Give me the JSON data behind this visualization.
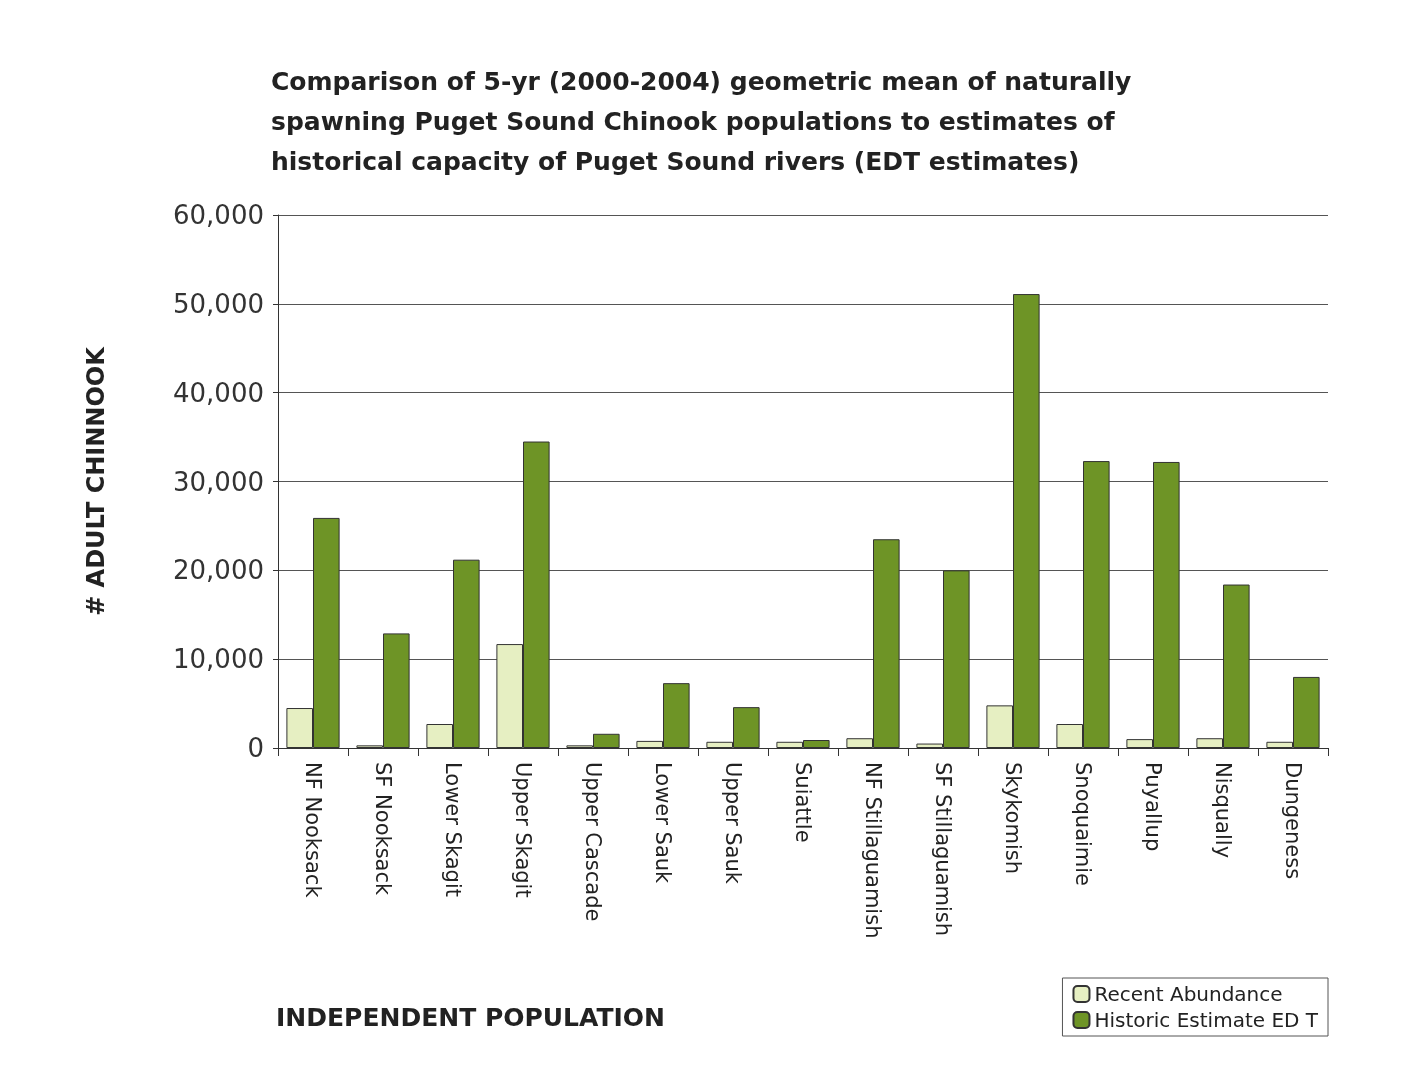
{
  "chart_data": {
    "type": "bar",
    "title": "Comparison of 5-yr (2000-2004) geometric mean of naturally\nspawning Puget Sound Chinook populations to estimates of\nhistorical capacity of Puget Sound rivers (EDT estimates)",
    "xlabel": "INDEPENDENT POPULATION",
    "ylabel": "# ADULT CHINNOOK",
    "categories": [
      "NF Nooksack",
      "SF Nooksack",
      "Lower Skagit",
      "Upper Skagit",
      "Upper Cascade",
      "Lower Sauk",
      "Upper Sauk",
      "Suiattle",
      "NF Stillaguamish",
      "SF Stillaguamish",
      "Skykomish",
      "Snoquaimie",
      "Puyallup",
      "Nisqually",
      "Dungeness"
    ],
    "series": [
      {
        "name": "Recent Abundance",
        "color": "#e6efc2",
        "values": [
          4500,
          300,
          2700,
          11700,
          300,
          800,
          700,
          700,
          1100,
          500,
          4800,
          2700,
          1000,
          1100,
          700
        ]
      },
      {
        "name": "Historic Estimate ED T",
        "color": "#6e9426",
        "values": [
          25900,
          12900,
          21200,
          34500,
          1600,
          7300,
          4600,
          900,
          23500,
          20000,
          51100,
          32300,
          32200,
          18400,
          8000
        ]
      }
    ],
    "ylim": [
      0,
      60000
    ],
    "yticks": [
      {
        "value": 0,
        "label": "0"
      },
      {
        "value": 10000,
        "label": "10,000"
      },
      {
        "value": 20000,
        "label": "20,000"
      },
      {
        "value": 30000,
        "label": "30,000"
      },
      {
        "value": 40000,
        "label": "40,000"
      },
      {
        "value": 50000,
        "label": "50,000"
      },
      {
        "value": 60000,
        "label": "60,000"
      }
    ],
    "grid": "y",
    "legend": "bottom right"
  }
}
